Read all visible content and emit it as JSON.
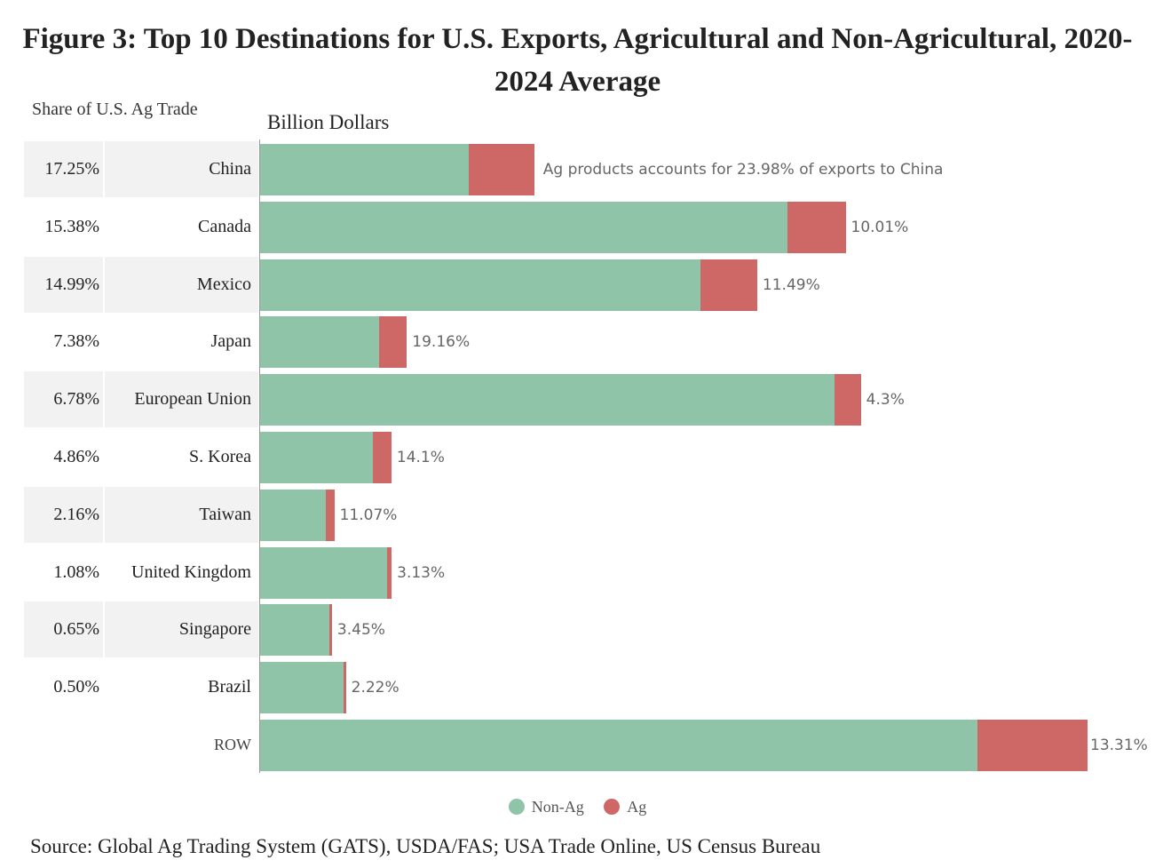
{
  "chart_data": {
    "type": "bar",
    "orientation": "horizontal",
    "stacked": true,
    "title": "Figure 3: Top 10 Destinations for U.S. Exports, Agricultural and Non-Agricultural, 2020-2024 Average",
    "xlabel": "Billion Dollars",
    "share_header": "Share of U.S. Ag Trade",
    "categories": [
      "China",
      "Canada",
      "Mexico",
      "Japan",
      "European Union",
      "S. Korea",
      "Taiwan",
      "United Kingdom",
      "Singapore",
      "Brazil",
      "ROW"
    ],
    "share_of_ag_trade": [
      "17.25%",
      "15.38%",
      "14.99%",
      "7.38%",
      "6.78%",
      "4.86%",
      "2.16%",
      "1.08%",
      "0.65%",
      "0.50%",
      ""
    ],
    "ag_pct_labels": [
      "Ag products accounts for 23.98% of exports to China",
      "10.01%",
      "11.49%",
      "19.16%",
      "4.3%",
      "14.1%",
      "11.07%",
      "3.13%",
      "3.45%",
      "2.22%",
      "13.31%"
    ],
    "series": [
      {
        "name": "Non-Ag",
        "color": "#8fc4a8",
        "values": [
          95.7,
          242.0,
          202.1,
          54.5,
          264.0,
          51.8,
          30.3,
          58.5,
          31.9,
          38.5,
          329.4
        ]
      },
      {
        "name": "Ag",
        "color": "#cd6866",
        "values": [
          30.2,
          26.9,
          26.2,
          12.9,
          11.9,
          8.5,
          3.8,
          1.9,
          1.1,
          0.9,
          50.6
        ]
      }
    ],
    "xlim": [
      0,
      380
    ],
    "legend": "bottom-center",
    "grid": false
  },
  "source": "Source: Global Ag Trading System (GATS), USDA/FAS; USA Trade Online, US Census Bureau"
}
